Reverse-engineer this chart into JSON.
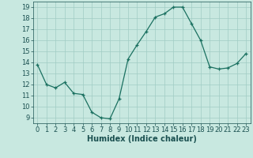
{
  "x": [
    0,
    1,
    2,
    3,
    4,
    5,
    6,
    7,
    8,
    9,
    10,
    11,
    12,
    13,
    14,
    15,
    16,
    17,
    18,
    19,
    20,
    21,
    22,
    23
  ],
  "y": [
    13.8,
    12.0,
    11.7,
    12.2,
    11.2,
    11.1,
    9.5,
    9.0,
    8.9,
    10.7,
    14.3,
    15.6,
    16.8,
    18.1,
    18.4,
    19.0,
    19.0,
    17.5,
    16.0,
    13.6,
    13.4,
    13.5,
    13.9,
    14.8
  ],
  "line_color": "#1a7060",
  "marker_color": "#1a7060",
  "bg_color": "#c8e8e0",
  "grid_color": "#a0ccc4",
  "xlabel": "Humidex (Indice chaleur)",
  "xlabel_fontsize": 7,
  "tick_fontsize": 6,
  "xlim": [
    -0.5,
    23.5
  ],
  "ylim": [
    8.5,
    19.5
  ],
  "yticks": [
    9,
    10,
    11,
    12,
    13,
    14,
    15,
    16,
    17,
    18,
    19
  ],
  "xticks": [
    0,
    1,
    2,
    3,
    4,
    5,
    6,
    7,
    8,
    9,
    10,
    11,
    12,
    13,
    14,
    15,
    16,
    17,
    18,
    19,
    20,
    21,
    22,
    23
  ],
  "tick_color": "#1a5050",
  "spine_color": "#1a5050"
}
